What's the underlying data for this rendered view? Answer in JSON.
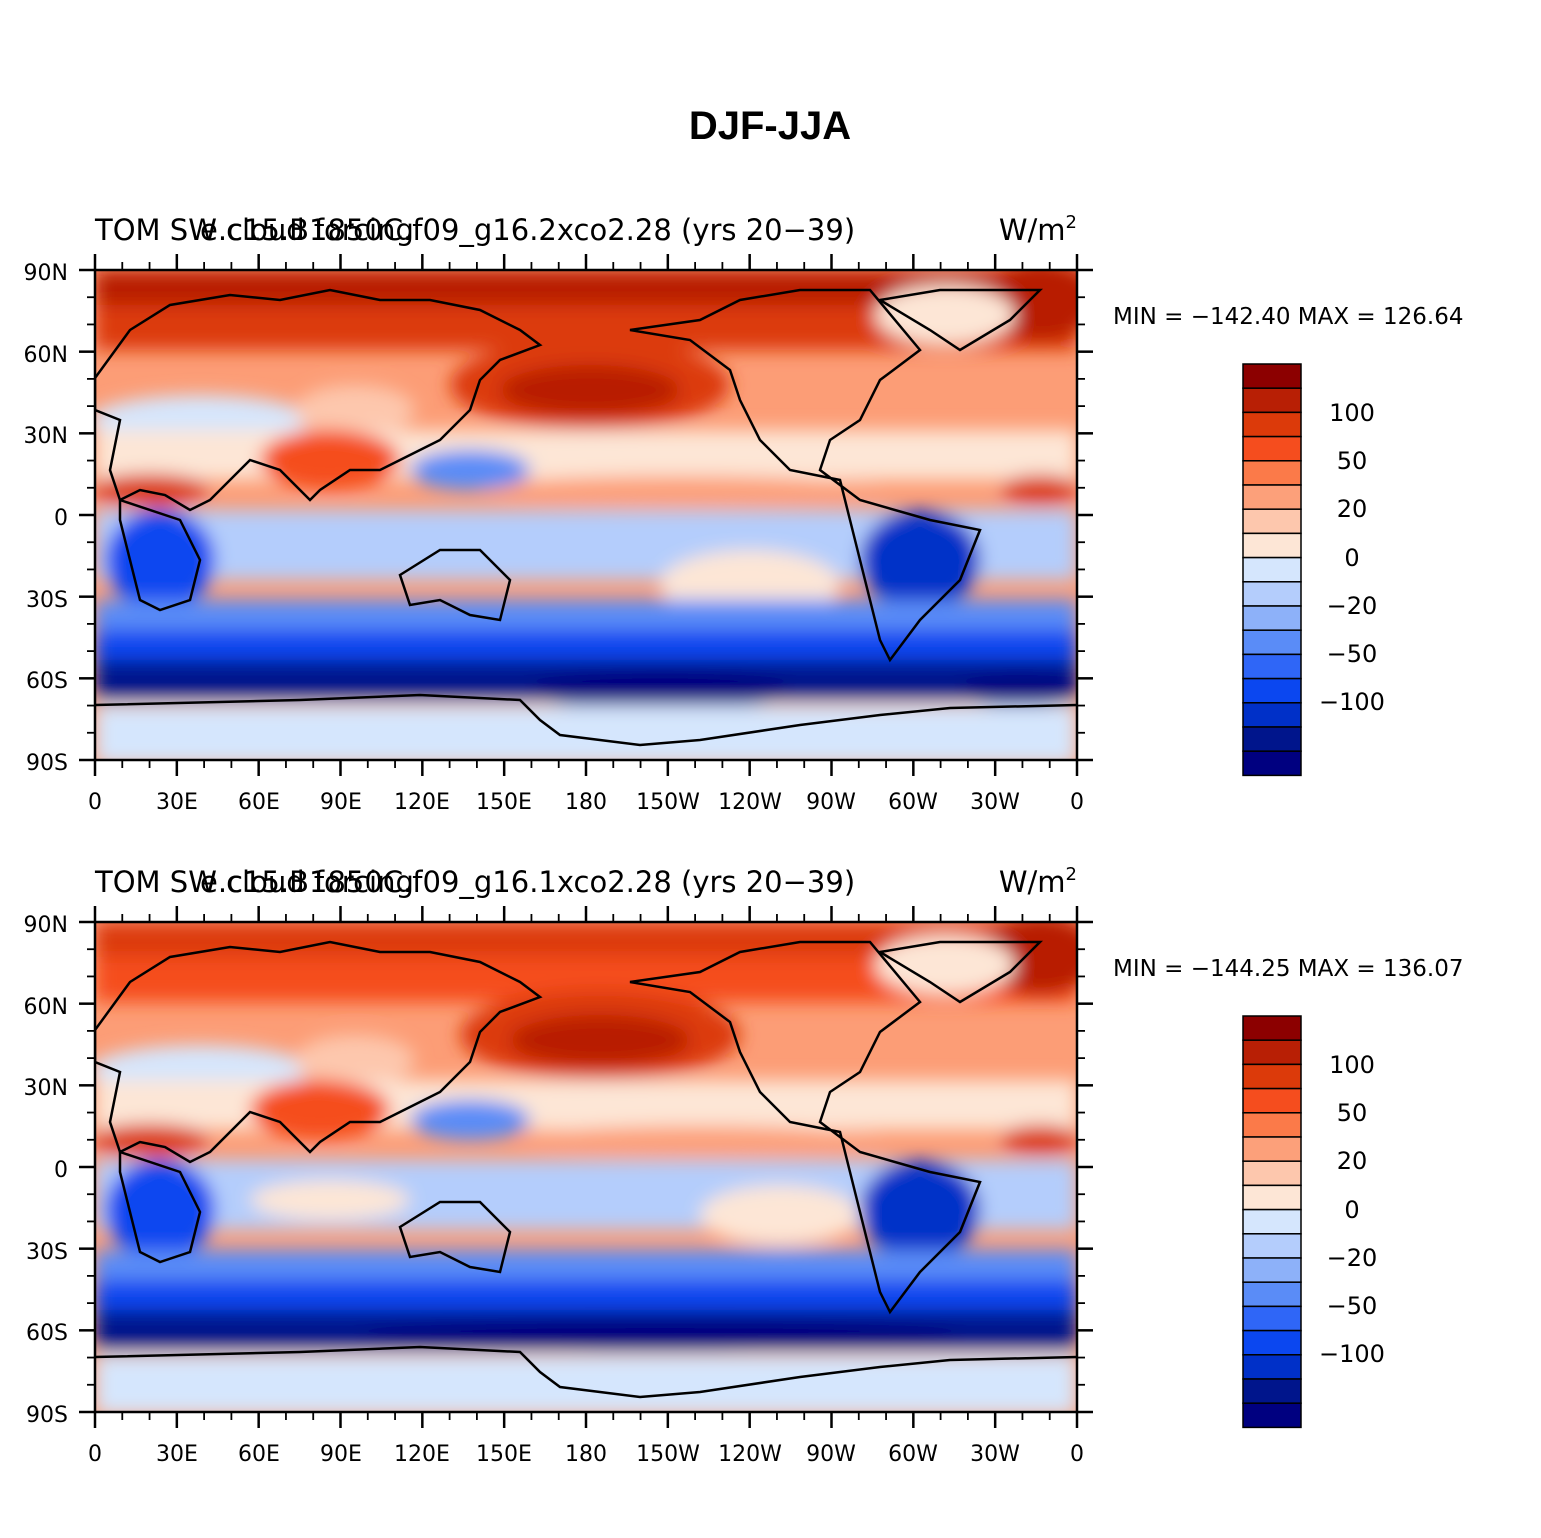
{
  "figure_title": "DJF-JJA",
  "colorbar": {
    "colors": [
      "#000080",
      "#00158c",
      "#0030c8",
      "#0b47f0",
      "#2f66f7",
      "#5a8cf7",
      "#8db1f9",
      "#b4cdfc",
      "#d5e6fd",
      "#fde6d6",
      "#fdc7ad",
      "#fca07a",
      "#fb7a49",
      "#f54d1e",
      "#dc3a0a",
      "#b81f05",
      "#8c0000"
    ],
    "labels": [
      "−100",
      "−50",
      "−20",
      "0",
      "20",
      "50",
      "100"
    ]
  },
  "lat_labels": [
    "90N",
    "60N",
    "30N",
    "0",
    "30S",
    "60S",
    "90S"
  ],
  "lon_labels": [
    "0",
    "30E",
    "60E",
    "90E",
    "120E",
    "150E",
    "180",
    "150W",
    "120W",
    "90W",
    "60W",
    "30W",
    "0"
  ],
  "panels": [
    {
      "left_title": "TOM SW cloud forcing",
      "center_title": "e.c15.B1850C.f09_g16.2xco2.28 (yrs 20−39)",
      "units_base": "W/m",
      "units_sup": "2",
      "stats": "MIN = −142.40  MAX = 126.64"
    },
    {
      "left_title": "TOM SW cloud forcing",
      "center_title": "e.c15.B1850C.f09_g16.1xco2.28 (yrs 20−39)",
      "units_base": "W/m",
      "units_sup": "2",
      "stats": "MIN = −144.25  MAX = 136.07"
    }
  ]
}
